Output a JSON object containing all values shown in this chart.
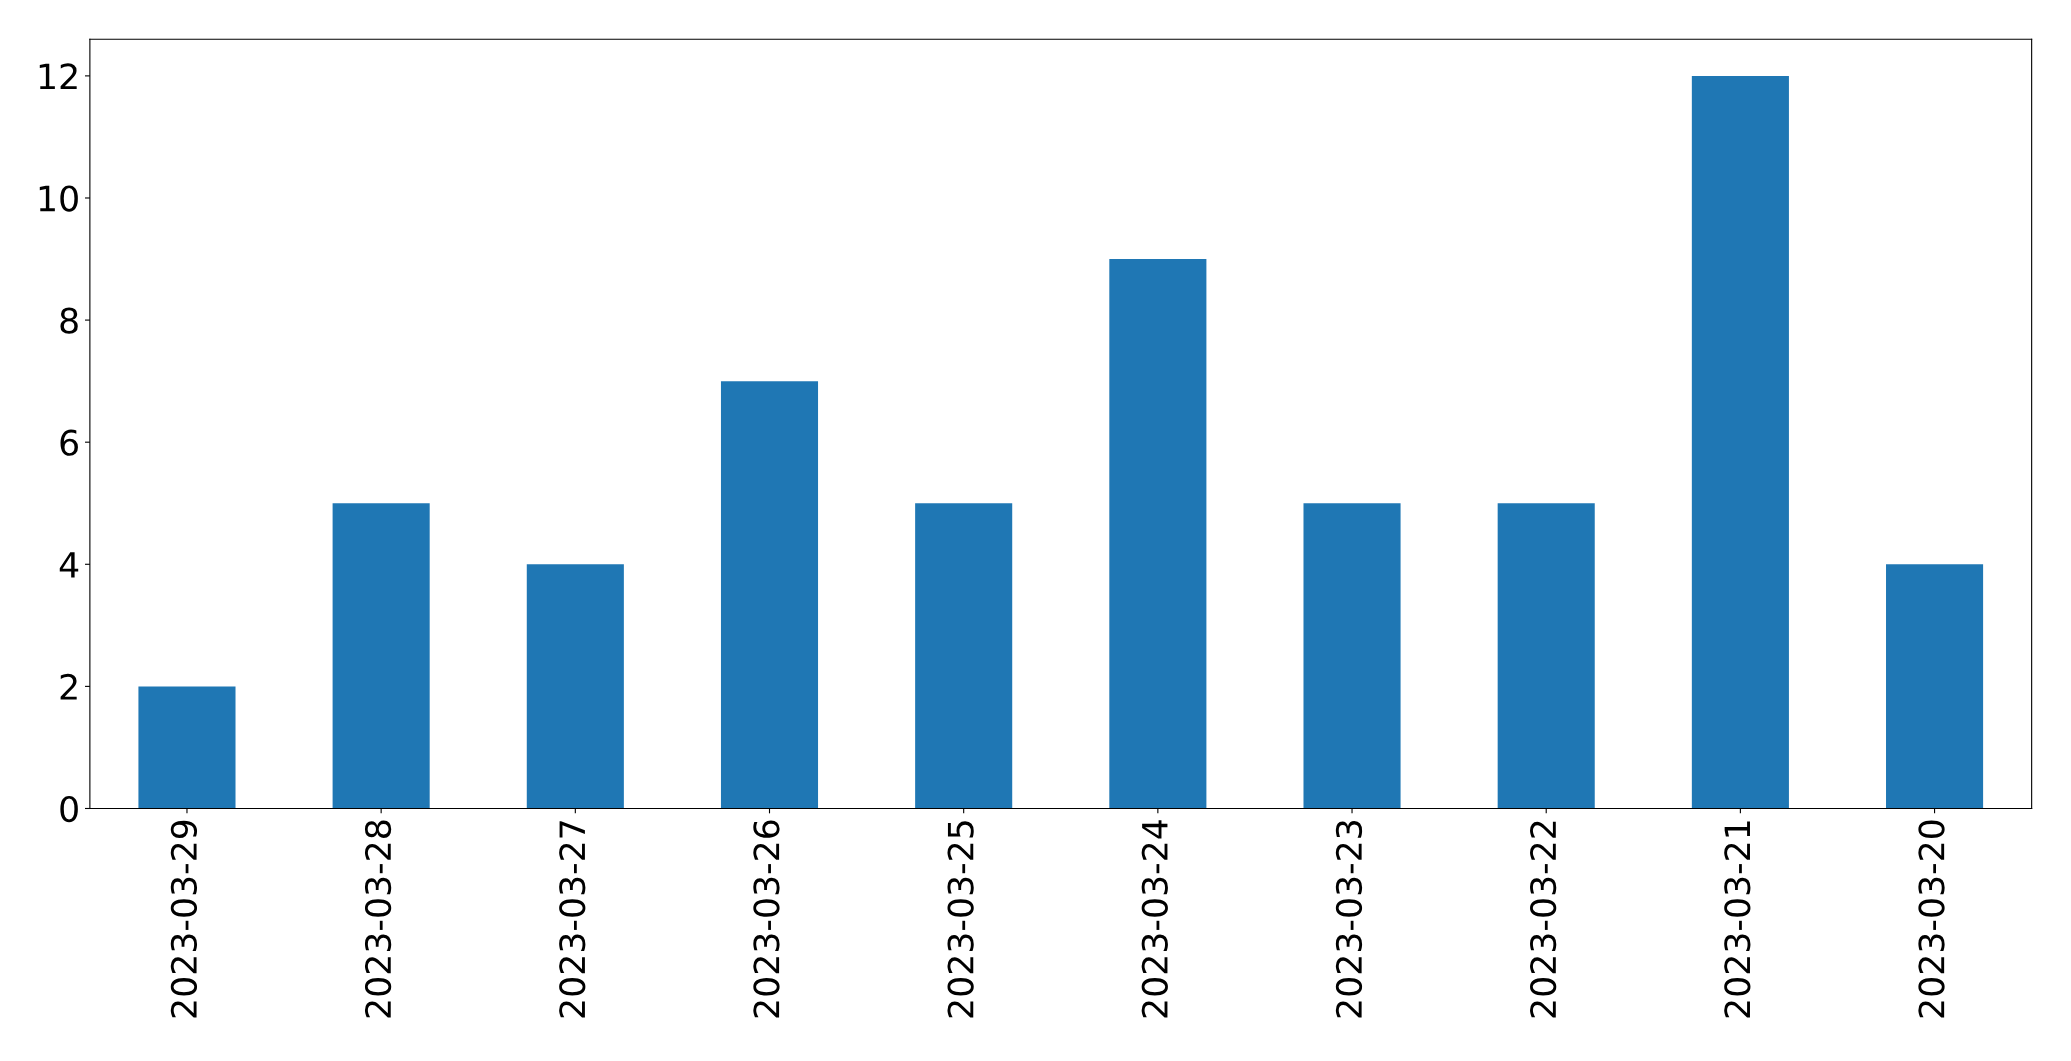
{
  "chart_data": {
    "type": "bar",
    "categories": [
      "2023-03-29",
      "2023-03-28",
      "2023-03-27",
      "2023-03-26",
      "2023-03-25",
      "2023-03-24",
      "2023-03-23",
      "2023-03-22",
      "2023-03-21",
      "2023-03-20"
    ],
    "values": [
      2,
      5,
      4,
      7,
      5,
      9,
      5,
      5,
      12,
      4
    ],
    "color": "#1f77b4",
    "ylim": [
      0,
      12.6
    ],
    "yticks": [
      0,
      2,
      4,
      6,
      8,
      10,
      12
    ],
    "grid": false,
    "legend": false
  }
}
